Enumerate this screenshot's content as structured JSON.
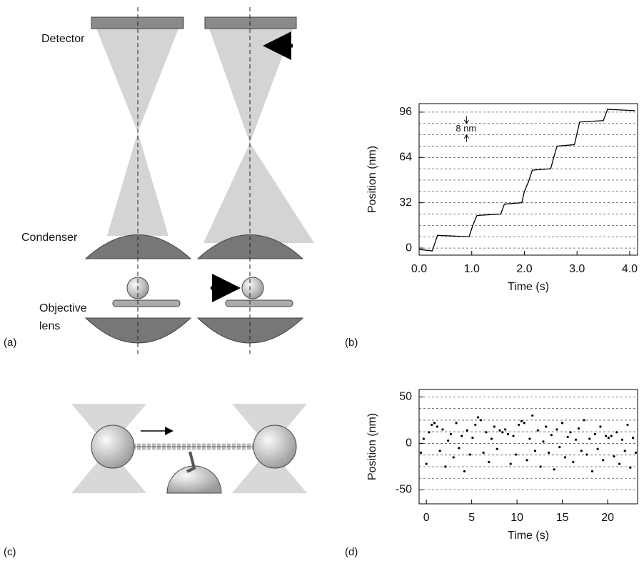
{
  "panels": [
    "(a)",
    "(b)",
    "(c)",
    "(d)"
  ],
  "diagram": {
    "detector": "Detector",
    "condenser": "Condenser",
    "objective": [
      "Objective",
      "lens"
    ]
  },
  "chart_data": [
    {
      "type": "line",
      "x_label": "Time (s)",
      "y_label": "Position (nm)",
      "color": "#000000",
      "x": [
        0,
        0.25,
        0.35,
        0.95,
        1.02,
        1.1,
        1.55,
        1.62,
        1.95,
        2.0,
        2.08,
        2.15,
        2.5,
        2.55,
        2.62,
        2.95,
        3.0,
        3.05,
        3.5,
        3.58,
        4.1
      ],
      "values": [
        -1,
        -2,
        9,
        8,
        16,
        23,
        24,
        31,
        32,
        40,
        47,
        55,
        56,
        63,
        72,
        73,
        81,
        89,
        90,
        98,
        97
      ],
      "xlim": [
        0,
        4.15
      ],
      "ylim": [
        -5,
        102
      ],
      "xticks": [
        {
          "value": 0,
          "label": "0.0"
        },
        {
          "value": 1,
          "label": "1.0"
        },
        {
          "value": 2,
          "label": "2.0"
        },
        {
          "value": 3,
          "label": "3.0"
        },
        {
          "value": 4,
          "label": "4.0"
        }
      ],
      "yticks": [
        0,
        32,
        64,
        96
      ],
      "grid_lines": [
        0,
        8,
        16,
        24,
        32,
        40,
        48,
        56,
        64,
        72,
        80,
        88,
        96
      ],
      "annotation": "8 nm"
    },
    {
      "type": "scatter",
      "x_label": "Time (s)",
      "y_label": "Position (nm)",
      "color": "#000000",
      "x": [
        -0.6,
        -0.3,
        0,
        0.3,
        0.6,
        0.9,
        1.2,
        1.5,
        1.8,
        2.1,
        2.4,
        2.7,
        3,
        3.3,
        3.6,
        3.9,
        4.2,
        4.5,
        4.8,
        5.1,
        5.4,
        5.7,
        6,
        6.3,
        6.6,
        6.9,
        7.2,
        7.5,
        7.8,
        8.1,
        8.4,
        8.7,
        9,
        9.3,
        9.6,
        9.9,
        10.2,
        10.5,
        10.8,
        11.1,
        11.4,
        11.7,
        12,
        12.3,
        12.6,
        12.9,
        13.2,
        13.5,
        13.8,
        14.1,
        14.4,
        14.7,
        15,
        15.3,
        15.6,
        15.9,
        16.2,
        16.5,
        16.8,
        17.1,
        17.4,
        17.7,
        18,
        18.3,
        18.6,
        18.9,
        19.2,
        19.5,
        19.8,
        20.1,
        20.4,
        20.7,
        21,
        21.3,
        21.6,
        21.9,
        22.2,
        22.5,
        22.8,
        23.1
      ],
      "values": [
        -10,
        5,
        -22,
        12,
        20,
        22,
        18,
        -8,
        15,
        -25,
        3,
        10,
        -15,
        22,
        -5,
        8,
        -30,
        14,
        -12,
        6,
        20,
        28,
        25,
        -10,
        12,
        -20,
        5,
        18,
        -6,
        14,
        12,
        15,
        10,
        -22,
        8,
        -12,
        20,
        24,
        22,
        -18,
        5,
        30,
        -8,
        14,
        -25,
        2,
        18,
        -10,
        9,
        -28,
        15,
        -4,
        22,
        -15,
        7,
        12,
        -20,
        4,
        16,
        -8,
        25,
        -12,
        5,
        -30,
        10,
        -6,
        18,
        -18,
        8,
        6,
        8,
        -14,
        12,
        -22,
        4,
        -8,
        20,
        -26,
        6,
        -10
      ],
      "xlim": [
        -0.8,
        23.3
      ],
      "ylim": [
        -65,
        58
      ],
      "xticks": [
        0,
        5,
        10,
        15,
        20
      ],
      "yticks": [
        -50,
        0,
        50
      ],
      "grid_lines": [
        -50,
        -37.5,
        -25,
        -12.5,
        0,
        12.5,
        25,
        37.5,
        50
      ]
    }
  ]
}
